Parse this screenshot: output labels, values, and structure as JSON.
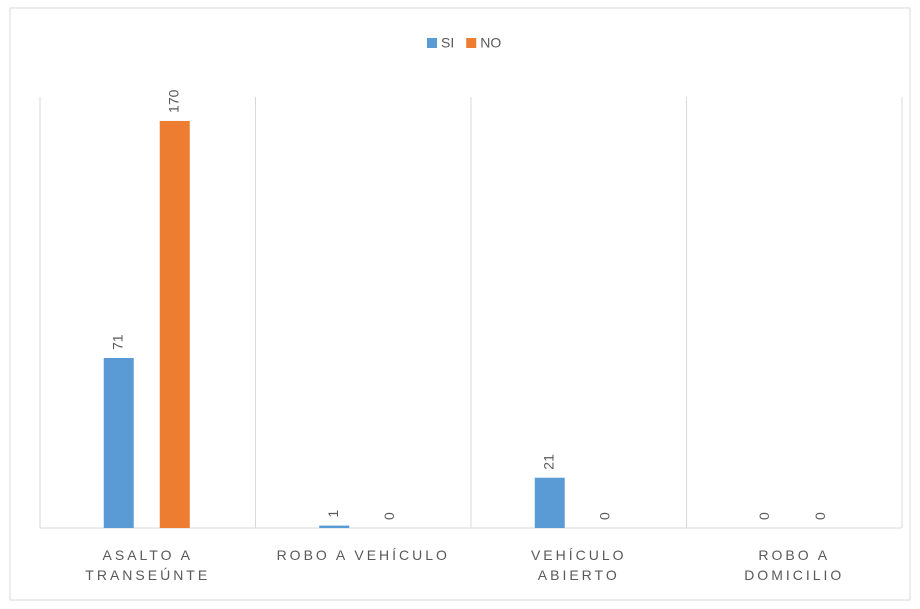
{
  "chart_data": {
    "type": "bar",
    "categories": [
      "ASALTO A TRANSEÚNTE",
      "ROBO A VEHÍCULO",
      "VEHÍCULO ABIERTO",
      "ROBO A DOMICILIO"
    ],
    "series": [
      {
        "name": "SI",
        "color": "#5b9bd5",
        "values": [
          71,
          1,
          21,
          0
        ]
      },
      {
        "name": "NO",
        "color": "#ed7d31",
        "values": [
          170,
          0,
          0,
          0
        ]
      }
    ],
    "ylim": [
      0,
      180
    ],
    "legend": "top"
  }
}
